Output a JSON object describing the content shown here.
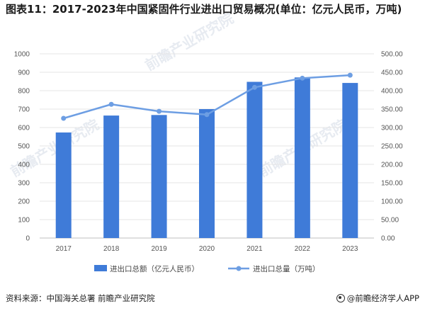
{
  "title": "图表11：2017-2023年中国紧固件行业进出口贸易概况(单位：亿元人民币，万吨)",
  "watermark": "前瞻产业研究院",
  "footer": {
    "source": "资料来源：中国海关总署 前瞻产业研究院",
    "brand": "@前瞻经济学人APP"
  },
  "colors": {
    "bar": "#3f7bd8",
    "line": "#6d9ee3",
    "grid": "#e6e6e6"
  },
  "chart_data": {
    "type": "bar+line",
    "categories": [
      "2017",
      "2018",
      "2019",
      "2020",
      "2021",
      "2022",
      "2023"
    ],
    "series": [
      {
        "name": "进出口总额（亿元人民币）",
        "type": "bar",
        "axis": "left",
        "values": [
          573,
          665,
          668,
          700,
          848,
          872,
          842
        ]
      },
      {
        "name": "进出口总量（万吨）",
        "type": "line",
        "axis": "right",
        "values": [
          325,
          363,
          344,
          335,
          409,
          434,
          442
        ]
      }
    ],
    "y_left": {
      "min": 0,
      "max": 1000,
      "ticks": [
        "0",
        "100",
        "200",
        "300",
        "400",
        "500",
        "600",
        "700",
        "800",
        "900",
        "1000"
      ]
    },
    "y_right": {
      "min": 0,
      "max": 500,
      "ticks": [
        "0.00",
        "50.00",
        "100.00",
        "150.00",
        "200.00",
        "250.00",
        "300.00",
        "350.00",
        "400.00",
        "450.00",
        "500.00"
      ]
    },
    "grid": true,
    "legend": "bottom"
  }
}
